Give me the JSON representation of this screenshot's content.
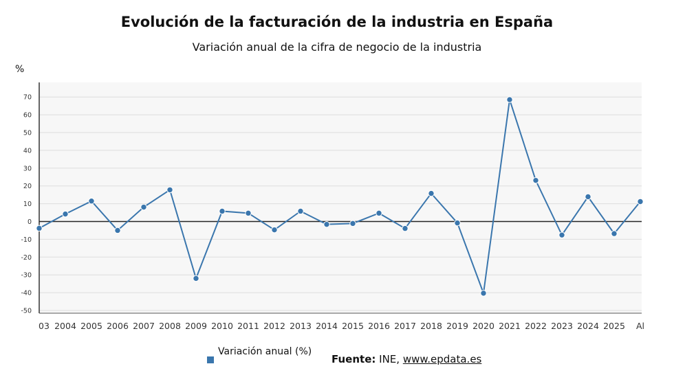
{
  "header": {
    "title": "Evolución de la facturación de la industria en España",
    "subtitle": "Variación anual de la cifra de negocio de la industria"
  },
  "colors": {
    "series": "#3a76ad",
    "plot_background": "#f7f7f7",
    "grid": "#dddddd",
    "zero_line": "#222222"
  },
  "legend": {
    "label": "Variación anual (%)",
    "position": "bottom"
  },
  "source": {
    "label": "Fuente:",
    "text": " INE, ",
    "link": "www.epdata.es"
  },
  "chart_data": {
    "type": "line",
    "title": "Evolución de la facturación de la industria en España",
    "subtitle": "Variación anual de la cifra de negocio de la industria",
    "ylabel": "%",
    "xlabel": "",
    "ylim": [
      -50,
      75
    ],
    "yticks": [
      70,
      60,
      50,
      40,
      30,
      20,
      10,
      0,
      -10,
      -20,
      -30,
      -40,
      -50
    ],
    "grid": true,
    "categories": [
      "03",
      "2004",
      "2005",
      "2006",
      "2007",
      "2008",
      "2009",
      "2010",
      "2011",
      "2012",
      "2013",
      "2014",
      "2015",
      "2016",
      "2017",
      "2018",
      "2019",
      "2020",
      "2021",
      "2022",
      "2023",
      "2024",
      "2025",
      "Al"
    ],
    "series": [
      {
        "name": "Variación anual (%)",
        "values": [
          -3.8,
          4.2,
          11.5,
          -5,
          8.1,
          17.8,
          -32,
          5.8,
          4.7,
          -4.7,
          5.8,
          -1.6,
          -1.1,
          4.7,
          -3.9,
          15.8,
          -0.8,
          -40.3,
          68.5,
          23.1,
          -7.6,
          13.9,
          -6.8,
          11.2
        ]
      }
    ]
  }
}
